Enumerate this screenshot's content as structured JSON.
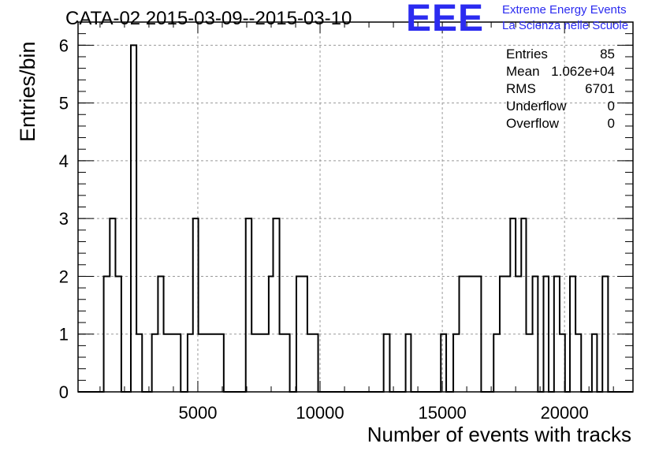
{
  "title": "CATA-02 2015-03-09--2015-03-10",
  "logo": {
    "mark": "EEE",
    "line1": "Extreme Energy Events",
    "line2": "La Scienza nelle Scuole"
  },
  "stats": [
    {
      "label": "Entries",
      "value": "85"
    },
    {
      "label": "Mean",
      "value": "1.062e+04"
    },
    {
      "label": "RMS",
      "value": "6701"
    },
    {
      "label": "Underflow",
      "value": "0"
    },
    {
      "label": "Overflow",
      "value": "0"
    }
  ],
  "chart_data": {
    "type": "histogram",
    "xlabel": "Number of events with tracks",
    "ylabel": "Entries/bin",
    "xlim": [
      100,
      22800
    ],
    "ylim": [
      0,
      6.4
    ],
    "xticks": [
      5000,
      10000,
      15000,
      20000
    ],
    "yticks": [
      0,
      1,
      2,
      3,
      4,
      5,
      6
    ],
    "grid": true,
    "bars": [
      {
        "x0": 1150,
        "x1": 1400,
        "y": 2
      },
      {
        "x0": 1400,
        "x1": 1630,
        "y": 3
      },
      {
        "x0": 1630,
        "x1": 1870,
        "y": 2
      },
      {
        "x0": 2260,
        "x1": 2490,
        "y": 6
      },
      {
        "x0": 2490,
        "x1": 2720,
        "y": 1
      },
      {
        "x0": 3120,
        "x1": 3370,
        "y": 1
      },
      {
        "x0": 3370,
        "x1": 3600,
        "y": 2
      },
      {
        "x0": 3600,
        "x1": 4300,
        "y": 1
      },
      {
        "x0": 4580,
        "x1": 4800,
        "y": 1
      },
      {
        "x0": 4800,
        "x1": 5020,
        "y": 3
      },
      {
        "x0": 5020,
        "x1": 6060,
        "y": 1
      },
      {
        "x0": 6960,
        "x1": 7200,
        "y": 3
      },
      {
        "x0": 7200,
        "x1": 7900,
        "y": 1
      },
      {
        "x0": 7900,
        "x1": 8080,
        "y": 2
      },
      {
        "x0": 8080,
        "x1": 8340,
        "y": 3
      },
      {
        "x0": 8340,
        "x1": 8760,
        "y": 1
      },
      {
        "x0": 9030,
        "x1": 9480,
        "y": 2
      },
      {
        "x0": 9480,
        "x1": 9920,
        "y": 1
      },
      {
        "x0": 12600,
        "x1": 12850,
        "y": 1
      },
      {
        "x0": 13500,
        "x1": 13720,
        "y": 1
      },
      {
        "x0": 14940,
        "x1": 15160,
        "y": 1
      },
      {
        "x0": 15450,
        "x1": 15690,
        "y": 1
      },
      {
        "x0": 15690,
        "x1": 16590,
        "y": 2
      },
      {
        "x0": 17100,
        "x1": 17350,
        "y": 1
      },
      {
        "x0": 17350,
        "x1": 17780,
        "y": 2
      },
      {
        "x0": 17780,
        "x1": 18000,
        "y": 3
      },
      {
        "x0": 18000,
        "x1": 18230,
        "y": 2
      },
      {
        "x0": 18230,
        "x1": 18430,
        "y": 3
      },
      {
        "x0": 18430,
        "x1": 18690,
        "y": 1
      },
      {
        "x0": 18690,
        "x1": 18910,
        "y": 2
      },
      {
        "x0": 19140,
        "x1": 19350,
        "y": 2
      },
      {
        "x0": 19570,
        "x1": 19800,
        "y": 2
      },
      {
        "x0": 19800,
        "x1": 20020,
        "y": 1
      },
      {
        "x0": 20220,
        "x1": 20450,
        "y": 2
      },
      {
        "x0": 20450,
        "x1": 20680,
        "y": 1
      },
      {
        "x0": 21120,
        "x1": 21330,
        "y": 1
      },
      {
        "x0": 21550,
        "x1": 21780,
        "y": 2
      }
    ]
  }
}
